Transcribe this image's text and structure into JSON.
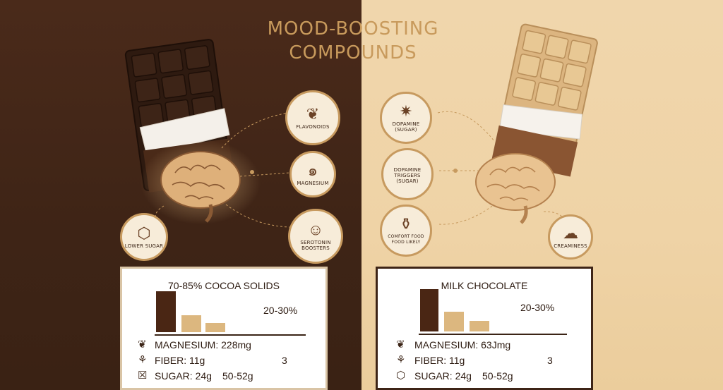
{
  "title": {
    "line1": "MOOD-BOOSTING",
    "line2": "COMPOUNDS"
  },
  "colors": {
    "dark_bg": "#3e2416",
    "light_bg": "#efd3a6",
    "accent": "#c79a5f",
    "dark_bar": "#4a2614",
    "light_bar": "#dcb77f"
  },
  "left": {
    "compounds": [
      {
        "icon": "leaf-icon",
        "glyph": "❦",
        "label": "FLAVONOIDS"
      },
      {
        "icon": "spiral-icon",
        "glyph": "๑",
        "label": "MAGNESIUM"
      },
      {
        "icon": "smiley-icon",
        "glyph": "☺",
        "label": "SEROTONIN BOOSTERS"
      },
      {
        "icon": "cube-icon",
        "glyph": "⬡",
        "label": "LOWER SUGAR"
      }
    ],
    "panel": {
      "title": "70-85% COCOA SOLIDS",
      "percent": "20-30%",
      "bars": [
        1.0,
        0.42,
        0.22
      ],
      "nutrients": [
        {
          "icon": "leaf-icon",
          "glyph": "❦",
          "text": "MAGNESIUM: 228mg",
          "extra": ""
        },
        {
          "icon": "fiber-icon",
          "glyph": "⚘",
          "text": "FIBER:  11g",
          "extra": "3"
        },
        {
          "icon": "sugar-x-icon",
          "glyph": "☒",
          "text": "SUGAR: 24g",
          "extra": "50-52g"
        }
      ]
    }
  },
  "right": {
    "compounds": [
      {
        "icon": "sparkle-icon",
        "glyph": "✷",
        "label": "DOPAMINE (SUGAR)"
      },
      {
        "icon": "none",
        "glyph": "",
        "label": "DOPAMINE TRIGGERS (SUGAR)"
      },
      {
        "icon": "bag-icon",
        "glyph": "⚱",
        "label": "COMFORT FOOD FOOD LIKELY"
      },
      {
        "icon": "cream-icon",
        "glyph": "☁",
        "label": "CREAMINESS"
      }
    ],
    "panel": {
      "title": "MILK CHOCOLATE",
      "percent": "20-30%",
      "bars": [
        1.0,
        0.47,
        0.25
      ],
      "nutrients": [
        {
          "icon": "leaf-icon",
          "glyph": "❦",
          "text": "MAGNESIUM: 63Jmg",
          "extra": ""
        },
        {
          "icon": "fiber-icon",
          "glyph": "⚘",
          "text": "FIBER:  11g",
          "extra": "3"
        },
        {
          "icon": "cube-icon",
          "glyph": "⬡",
          "text": "SUGAR: 24g",
          "extra": "50-52g"
        }
      ]
    }
  }
}
